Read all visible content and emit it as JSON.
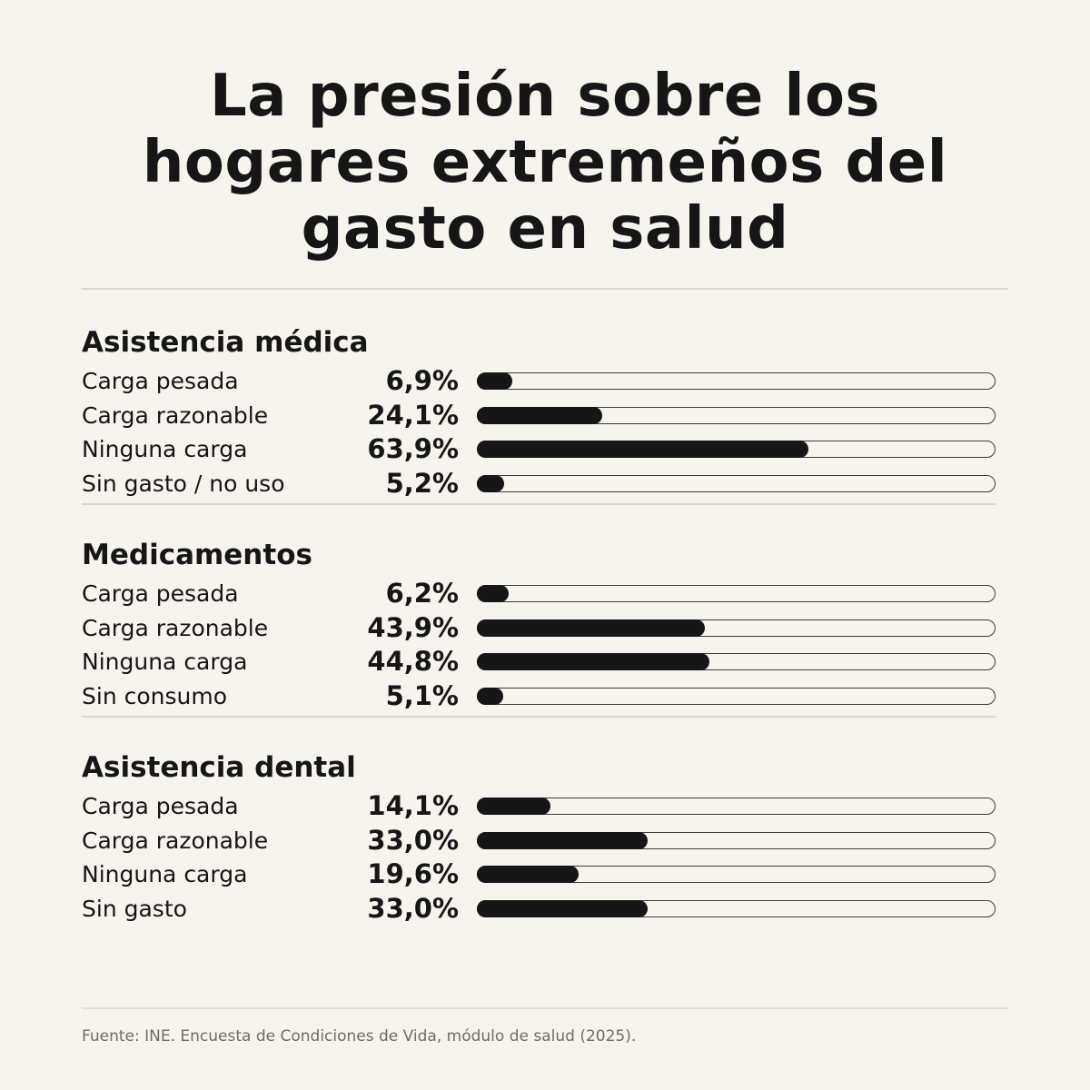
{
  "title": "La presión sobre los hogares extremeños del gasto en salud",
  "chart_data": {
    "type": "bar",
    "value_range": [
      0,
      100
    ],
    "unit": "%",
    "colors": {
      "fill": "#161616",
      "track_border": "#3d3d3d",
      "background": "#f7f3ed"
    },
    "groups": [
      {
        "title": "Asistencia médica",
        "rows": [
          {
            "label": "Carga pesada",
            "value": 6.9,
            "value_label": "6,9%"
          },
          {
            "label": "Carga razonable",
            "value": 24.1,
            "value_label": "24,1%"
          },
          {
            "label": "Ninguna carga",
            "value": 63.9,
            "value_label": "63,9%"
          },
          {
            "label": "Sin gasto / no uso",
            "value": 5.2,
            "value_label": "5,2%"
          }
        ]
      },
      {
        "title": "Medicamentos",
        "rows": [
          {
            "label": "Carga pesada",
            "value": 6.2,
            "value_label": "6,2%"
          },
          {
            "label": "Carga razonable",
            "value": 43.9,
            "value_label": "43,9%"
          },
          {
            "label": "Ninguna carga",
            "value": 44.8,
            "value_label": "44,8%"
          },
          {
            "label": "Sin consumo",
            "value": 5.1,
            "value_label": "5,1%"
          }
        ]
      },
      {
        "title": "Asistencia dental",
        "rows": [
          {
            "label": "Carga pesada",
            "value": 14.1,
            "value_label": "14,1%"
          },
          {
            "label": "Carga razonable",
            "value": 33.0,
            "value_label": "33,0%"
          },
          {
            "label": "Ninguna carga",
            "value": 19.6,
            "value_label": "19,6%"
          },
          {
            "label": "Sin gasto",
            "value": 33.0,
            "value_label": "33,0%"
          }
        ]
      }
    ]
  },
  "source": "Fuente: INE. Encuesta de Condiciones de Vida, módulo de salud (2025)."
}
